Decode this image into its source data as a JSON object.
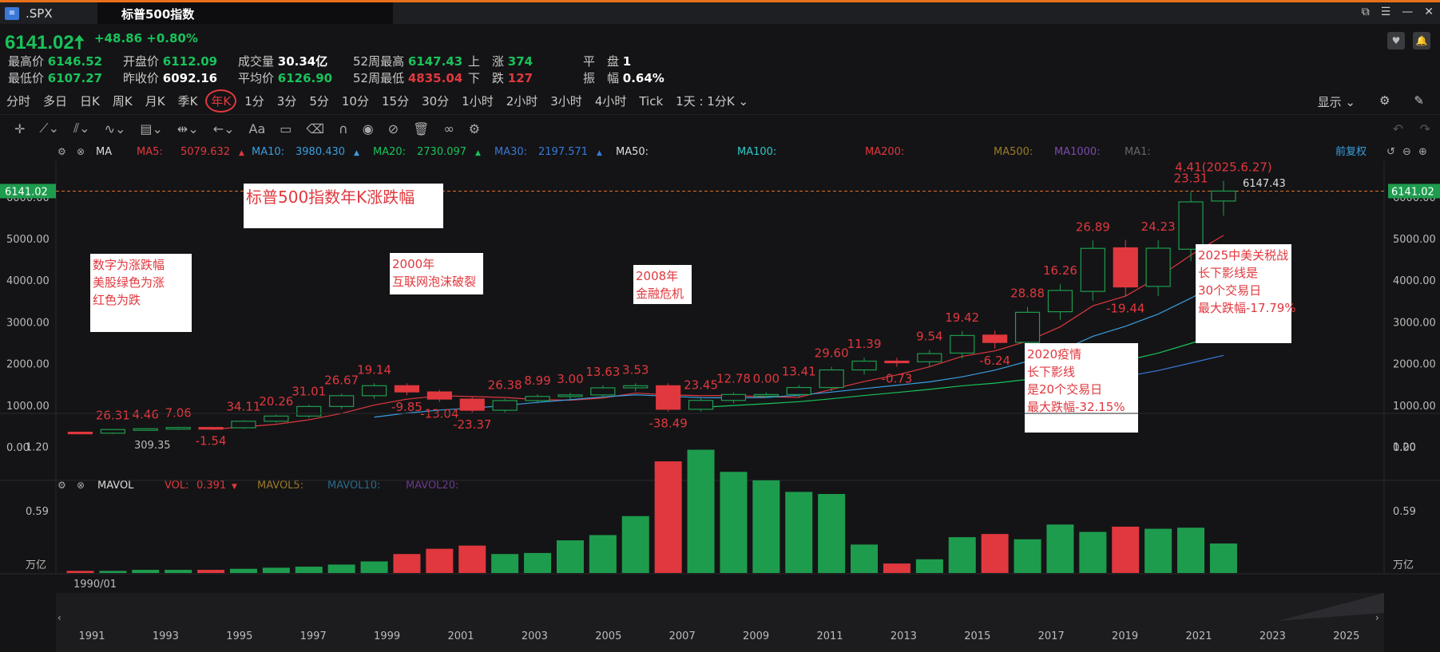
{
  "window": {
    "ticker": ".SPX",
    "title": "标普500指数"
  },
  "quote": {
    "price": "6141.02",
    "change": "+48.86",
    "change_pct": "+0.80%",
    "high_label": "最高价",
    "high": "6146.52",
    "low_label": "最低价",
    "low": "6107.27",
    "open_label": "开盘价",
    "open": "6112.09",
    "prev_close_label": "昨收价",
    "prev_close": "6092.16",
    "volume_label": "成交量",
    "volume": "30.34亿",
    "avg_label": "平均价",
    "avg": "6126.90",
    "wk52_high_label": "52周最高",
    "wk52_high": "6147.43",
    "wk52_low_label": "52周最低",
    "wk52_low": "4835.04",
    "up_label": "上　涨",
    "up": "374",
    "down_label": "下　跌",
    "down": "127",
    "flat_label": "平　盘",
    "flat": "1",
    "amp_label": "振　幅",
    "amp": "0.64%"
  },
  "periods": [
    "分时",
    "多日",
    "日K",
    "周K",
    "月K",
    "季K",
    "年K",
    "1分",
    "3分",
    "5分",
    "10分",
    "15分",
    "30分",
    "1小时",
    "2小时",
    "3小时",
    "4小时",
    "Tick",
    "1天 : 1分K ⌄"
  ],
  "active_period": "年K",
  "display_label": "显示 ⌄",
  "ma_bar": {
    "label": "MA",
    "items": [
      {
        "name": "MA5:",
        "value": "5079.632",
        "color": "#e0383e",
        "arrow": "▲"
      },
      {
        "name": "MA10:",
        "value": "3980.430",
        "color": "#3a9ee0",
        "arrow": "▲"
      },
      {
        "name": "MA20:",
        "value": "2730.097",
        "color": "#19c25b",
        "arrow": "▲"
      },
      {
        "name": "MA30:",
        "value": "2197.571",
        "color": "#3a78d8",
        "arrow": "▲"
      },
      {
        "name": "MA50:",
        "value": "",
        "color": "#dddddd",
        "arrow": ""
      },
      {
        "name": "MA100:",
        "value": "",
        "color": "#30c8c8",
        "arrow": ""
      },
      {
        "name": "MA200:",
        "value": "",
        "color": "#e0383e",
        "arrow": ""
      },
      {
        "name": "MA500:",
        "value": "",
        "color": "#9a7a2a",
        "arrow": ""
      },
      {
        "name": "MA1000:",
        "value": "",
        "color": "#7a4ab0",
        "arrow": ""
      },
      {
        "name": "MA1:",
        "value": "",
        "color": "#666666",
        "arrow": ""
      }
    ],
    "adjust": "前复权"
  },
  "vol_bar": {
    "label": "MAVOL",
    "vol_name": "VOL:",
    "vol_value": "0.391",
    "mavol5": "MAVOL5:",
    "mavol10": "MAVOL10:",
    "mavol20": "MAVOL20:"
  },
  "price_axis": {
    "ticks": [
      "6000.00",
      "5000.00",
      "4000.00",
      "3000.00",
      "2000.00",
      "1000.00",
      "0.00"
    ],
    "current": "6141.02"
  },
  "vol_axis": {
    "ticks": [
      "1.20",
      "0.59"
    ],
    "unit": "万亿"
  },
  "time_axis": {
    "start": "1990/01",
    "years": [
      "1991",
      "1993",
      "1995",
      "1997",
      "1999",
      "2001",
      "2003",
      "2005",
      "2007",
      "2009",
      "2011",
      "2013",
      "2015",
      "2017",
      "2019",
      "2021",
      "2023",
      "2025"
    ]
  },
  "chart_data": {
    "type": "candlestick",
    "title": "标普500指数年K涨跌幅",
    "years": [
      1990,
      1991,
      1992,
      1993,
      1994,
      1995,
      1996,
      1997,
      1998,
      1999,
      2000,
      2001,
      2002,
      2003,
      2004,
      2005,
      2006,
      2007,
      2008,
      2009,
      2010,
      2011,
      2012,
      2013,
      2014,
      2015,
      2016,
      2017,
      2018,
      2019,
      2020,
      2021,
      2022,
      2023,
      2024,
      2025
    ],
    "open": [
      353,
      330,
      417,
      436,
      466,
      459,
      616,
      740,
      970,
      1229,
      1469,
      1320,
      1148,
      880,
      1112,
      1212,
      1248,
      1418,
      1468,
      903,
      1116,
      1258,
      1258,
      1426,
      1848,
      2059,
      2044,
      2252,
      2684,
      2510,
      3245,
      3733,
      4779,
      3853,
      4745,
      5903
    ],
    "close": [
      330,
      417,
      436,
      466,
      459,
      616,
      740,
      970,
      1229,
      1469,
      1320,
      1148,
      880,
      1112,
      1212,
      1248,
      1418,
      1468,
      903,
      1116,
      1258,
      1258,
      1426,
      1848,
      2059,
      2044,
      2239,
      2674,
      2507,
      3231,
      3756,
      4766,
      3840,
      4770,
      5882,
      6141
    ],
    "pct_labels": [
      "",
      "26.31",
      "4.46",
      "7.06",
      "-1.54",
      "34.11",
      "20.26",
      "31.01",
      "26.67",
      "19.14",
      "-9.85",
      "-13.04",
      "-23.37",
      "26.38",
      "8.99",
      "3.00",
      "13.63",
      "3.53",
      "-38.49",
      "23.45",
      "12.78",
      "0.00",
      "13.41",
      "29.60",
      "11.39",
      "-0.73",
      "9.54",
      "19.42",
      "-6.24",
      "28.88",
      "16.26",
      "26.89",
      "-19.44",
      "24.23",
      "23.31",
      "4.41(2025.6.27)"
    ],
    "low_marker": "309.35",
    "high_marker": "6147.43",
    "volume": [
      0.02,
      0.02,
      0.03,
      0.03,
      0.03,
      0.04,
      0.05,
      0.06,
      0.08,
      0.11,
      0.18,
      0.23,
      0.26,
      0.18,
      0.19,
      0.31,
      0.36,
      0.54,
      1.06,
      1.17,
      0.96,
      0.88,
      0.77,
      0.75,
      0.27,
      0.09,
      0.13,
      0.34,
      0.37,
      0.32,
      0.46,
      0.39,
      0.44,
      0.42,
      0.43,
      0.28
    ]
  },
  "annotations": [
    {
      "lines": [
        "标普500指数年K涨跌幅"
      ]
    },
    {
      "lines": [
        "数字为涨跌幅",
        "美股绿色为涨",
        "红色为跌"
      ]
    },
    {
      "lines": [
        "2000年",
        "互联网泡沫破裂"
      ]
    },
    {
      "lines": [
        "2008年",
        "金融危机"
      ]
    },
    {
      "lines": [
        "2020疫情",
        "长下影线",
        "是20个交易日",
        "最大跌幅-32.15%"
      ]
    },
    {
      "lines": [
        "2025中美关税战",
        "长下影线是",
        "30个交易日",
        "最大跌幅-17.79%"
      ]
    }
  ],
  "colors": {
    "up": "#1e9c4e",
    "down": "#e0383e",
    "background": "#141416"
  }
}
